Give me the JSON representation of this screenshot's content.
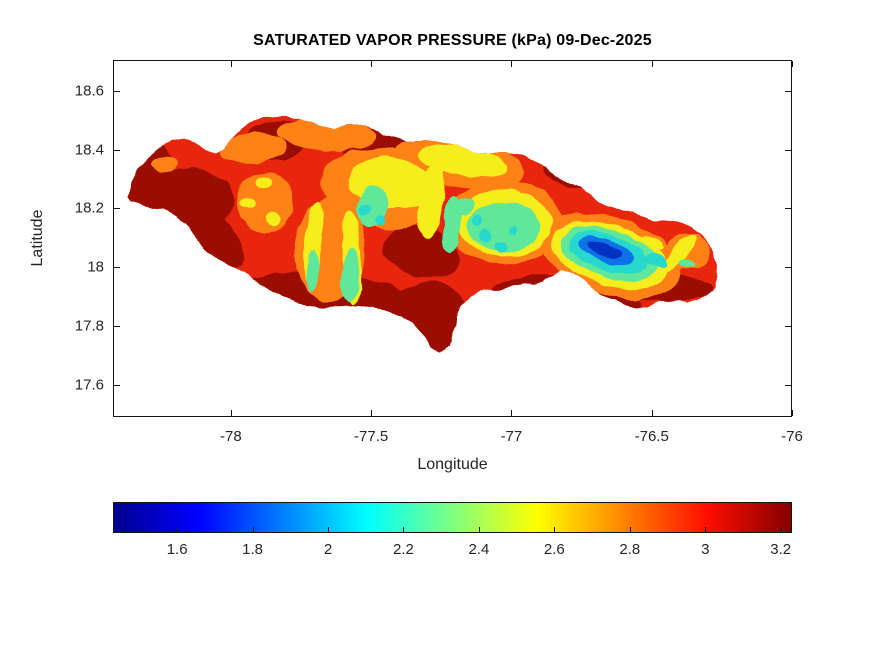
{
  "figure": {
    "background": "#ffffff",
    "text_color": "#262626",
    "axis_color": "#151515"
  },
  "chart_data": {
    "type": "heatmap",
    "title": "SATURATED VAPOR PRESSURE (kPa) 09-Dec-2025",
    "variable": "Saturated vapor pressure",
    "units": "kPa",
    "date": "09-Dec-2025",
    "region": "Jamaica (filled contour map)",
    "xlabel": "Longitude",
    "ylabel": "Latitude",
    "xlim": [
      -78.42,
      -76
    ],
    "ylim": [
      17.49,
      18.705
    ],
    "x_ticks": [
      -78,
      -77.5,
      -77,
      -76.5,
      -76
    ],
    "y_ticks": [
      18.6,
      18.4,
      18.2,
      18,
      17.8,
      17.6
    ],
    "grid": false,
    "colormap": "jet",
    "color_range": [
      1.43,
      3.23
    ],
    "colorbar_ticks": [
      1.6,
      1.8,
      2,
      2.2,
      2.4,
      2.6,
      2.8,
      3,
      3.2
    ],
    "colorbar_orientation": "horizontal-below",
    "colormap_stops": [
      {
        "pos": 0.0,
        "color": "#00008f"
      },
      {
        "pos": 0.125,
        "color": "#0000ff"
      },
      {
        "pos": 0.375,
        "color": "#00ffff"
      },
      {
        "pos": 0.625,
        "color": "#ffff00"
      },
      {
        "pos": 0.875,
        "color": "#ff0e00"
      },
      {
        "pos": 1.0,
        "color": "#850000"
      }
    ],
    "value_min": 1.45,
    "value_max": 3.22,
    "sampled_points": [
      {
        "lon": -78.3,
        "lat": 18.28,
        "value": 3.2
      },
      {
        "lon": -78.05,
        "lat": 18.4,
        "value": 3.0
      },
      {
        "lon": -77.9,
        "lat": 18.17,
        "value": 3.2
      },
      {
        "lon": -77.8,
        "lat": 18.42,
        "value": 2.9
      },
      {
        "lon": -77.55,
        "lat": 18.3,
        "value": 2.5
      },
      {
        "lon": -77.5,
        "lat": 18.08,
        "value": 2.3
      },
      {
        "lon": -77.35,
        "lat": 18.33,
        "value": 2.6
      },
      {
        "lon": -77.6,
        "lat": 17.98,
        "value": 3.2
      },
      {
        "lon": -77.2,
        "lat": 18.2,
        "value": 2.2
      },
      {
        "lon": -77.05,
        "lat": 18.2,
        "value": 2.4
      },
      {
        "lon": -76.95,
        "lat": 17.95,
        "value": 3.2
      },
      {
        "lon": -76.75,
        "lat": 18.07,
        "value": 1.5
      },
      {
        "lon": -76.65,
        "lat": 18.04,
        "value": 2.0
      },
      {
        "lon": -76.5,
        "lat": 18.0,
        "value": 2.4
      },
      {
        "lon": -76.35,
        "lat": 18.1,
        "value": 2.9
      }
    ]
  }
}
